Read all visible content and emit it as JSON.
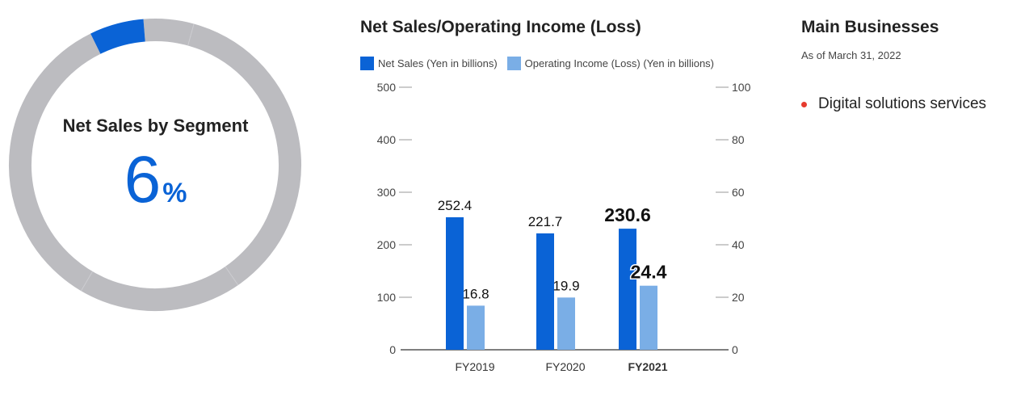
{
  "donut": {
    "title": "Net Sales by Segment",
    "value": "6",
    "unit": "%",
    "share": 0.06,
    "highlight_color": "#0a63d6",
    "rest_color": "#bcbcc0"
  },
  "chart_data": {
    "type": "bar",
    "title": "Net Sales/Operating Income (Loss)",
    "categories": [
      "FY2019",
      "FY2020",
      "FY2021"
    ],
    "highlight_category": "FY2021",
    "series": [
      {
        "name": "Net Sales (Yen in billions)",
        "axis": "left",
        "color": "#0a63d6",
        "values": [
          252.4,
          221.7,
          230.6
        ],
        "labels": [
          "252.4",
          "221.7",
          "230.6"
        ]
      },
      {
        "name": "Operating Income (Loss) (Yen in billions)",
        "axis": "right",
        "color": "#7aaee6",
        "values": [
          16.8,
          19.9,
          24.4
        ],
        "labels": [
          "16.8",
          "19.9",
          "24.4"
        ]
      }
    ],
    "y_left": {
      "ticks": [
        "0",
        "100",
        "200",
        "300",
        "400",
        "500"
      ],
      "lim": [
        0,
        500
      ]
    },
    "y_right": {
      "ticks": [
        "0",
        "20",
        "40",
        "60",
        "80",
        "100"
      ],
      "lim": [
        0,
        100
      ]
    },
    "legend_position": "top",
    "grid": false
  },
  "business": {
    "title": "Main Businesses",
    "date": "As of March 31, 2022",
    "items": [
      "Digital solutions services"
    ]
  }
}
